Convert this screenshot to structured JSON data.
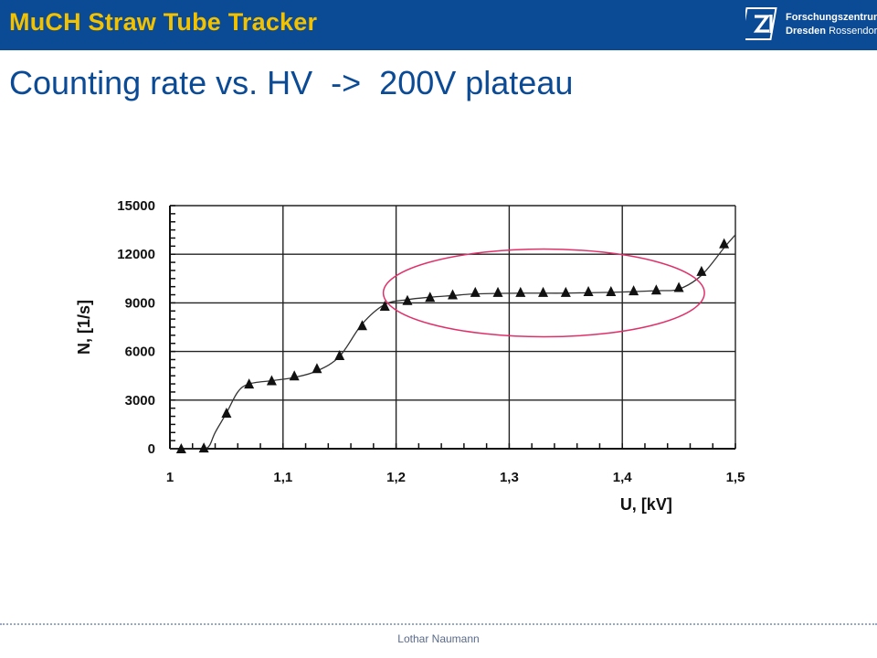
{
  "header": {
    "title": "MuCH Straw Tube Tracker"
  },
  "logo": {
    "line1": "Forschungszentrum",
    "line2_bold": "Dresden",
    "line2_rest": " Rossendorf"
  },
  "slide_title": "Counting rate vs. HV  ->  200V plateau",
  "footer": {
    "author": "Lothar Naumann"
  },
  "colors": {
    "header_bg": "#0b4a95",
    "header_text": "#f2c200",
    "title": "#0b4a95",
    "highlight_ellipse": "#e0306a"
  },
  "chart_data": {
    "type": "line",
    "xlabel": "U, [kV]",
    "ylabel": "N, [1/s]",
    "xlim": [
      1.0,
      1.5
    ],
    "ylim": [
      0,
      15000
    ],
    "x_ticks": [
      "1",
      "1,1",
      "1,2",
      "1,3",
      "1,4",
      "1,5"
    ],
    "y_ticks": [
      "0",
      "3000",
      "6000",
      "9000",
      "12000",
      "15000"
    ],
    "grid": true,
    "markers": "triangle",
    "series": [
      {
        "x": [
          1.01,
          1.03,
          1.05,
          1.07,
          1.09,
          1.11,
          1.13,
          1.15,
          1.17,
          1.19,
          1.21,
          1.23,
          1.25,
          1.27,
          1.29,
          1.31,
          1.33,
          1.35,
          1.37,
          1.39,
          1.41,
          1.43,
          1.45,
          1.47,
          1.49
        ],
        "y": [
          0,
          50,
          2200,
          4000,
          4200,
          4500,
          4950,
          5750,
          7600,
          8800,
          9150,
          9350,
          9500,
          9650,
          9650,
          9650,
          9650,
          9650,
          9700,
          9700,
          9750,
          9800,
          9950,
          10950,
          12650
        ]
      }
    ],
    "curve": {
      "x": [
        1.0,
        1.01,
        1.02,
        1.03,
        1.035,
        1.04,
        1.05,
        1.06,
        1.07,
        1.09,
        1.11,
        1.13,
        1.15,
        1.17,
        1.19,
        1.21,
        1.23,
        1.25,
        1.27,
        1.31,
        1.35,
        1.39,
        1.43,
        1.45,
        1.47,
        1.49,
        1.5
      ],
      "y": [
        0,
        0,
        0,
        0,
        200,
        1000,
        2200,
        3500,
        4000,
        4200,
        4400,
        4800,
        5700,
        7700,
        8900,
        9200,
        9350,
        9450,
        9550,
        9600,
        9600,
        9650,
        9750,
        9850,
        10700,
        12400,
        13200
      ]
    },
    "highlight": {
      "shape": "ellipse",
      "x_range": [
        1.2,
        1.45
      ],
      "y_center": 9500
    }
  }
}
